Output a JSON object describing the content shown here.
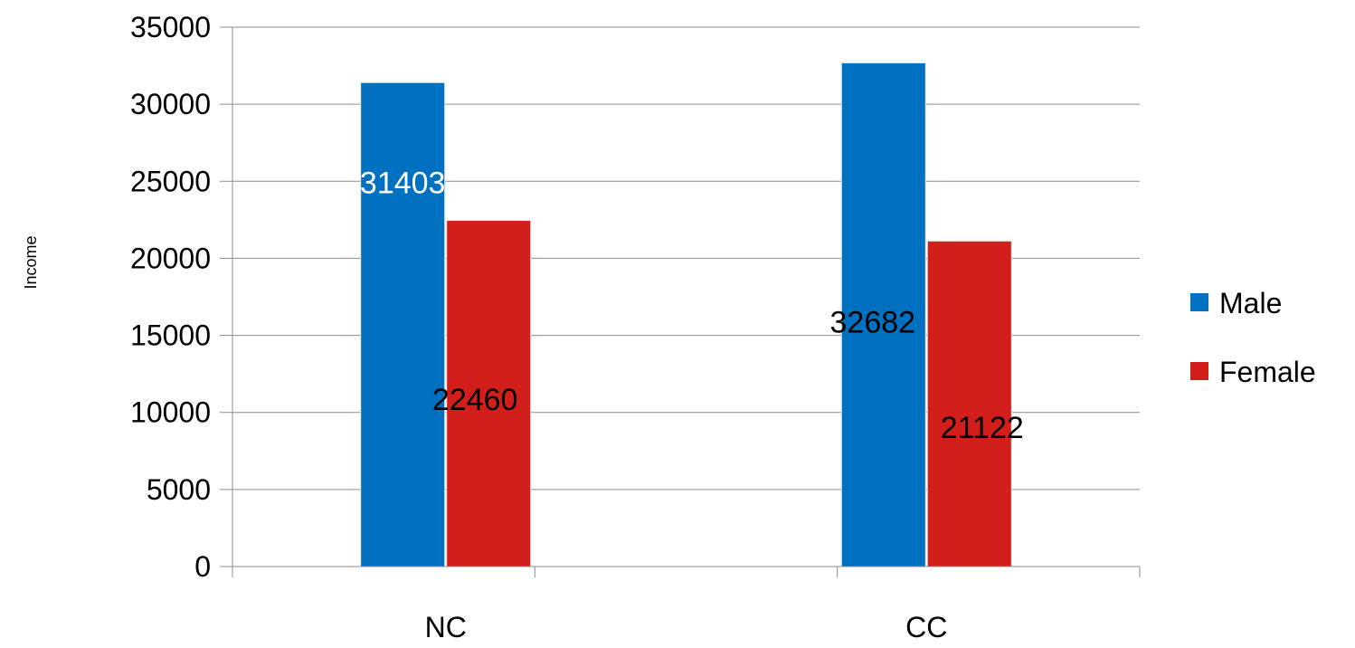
{
  "chart_data": {
    "type": "bar",
    "title": "",
    "xlabel": "",
    "ylabel": "Income",
    "categories": [
      "NC",
      "CC"
    ],
    "ylim": [
      0,
      35000
    ],
    "yticks": [
      0,
      5000,
      10000,
      15000,
      20000,
      25000,
      30000,
      35000
    ],
    "ytick_labels": [
      "0",
      "5000",
      "10000",
      "15000",
      "20000",
      "25000",
      "30000",
      "35000"
    ],
    "grid": true,
    "legend_position": "right",
    "series": [
      {
        "name": "Male",
        "color": "#0070C0",
        "values": [
          31403,
          32682
        ],
        "data_labels": [
          "31403",
          "32682"
        ],
        "label_colors": [
          "#ffffff",
          "#000000"
        ]
      },
      {
        "name": "Female",
        "color": "#D21F1B",
        "values": [
          22460,
          21122
        ],
        "data_labels": [
          "22460",
          "21122"
        ],
        "label_colors": [
          "#000000",
          "#000000"
        ]
      }
    ]
  }
}
